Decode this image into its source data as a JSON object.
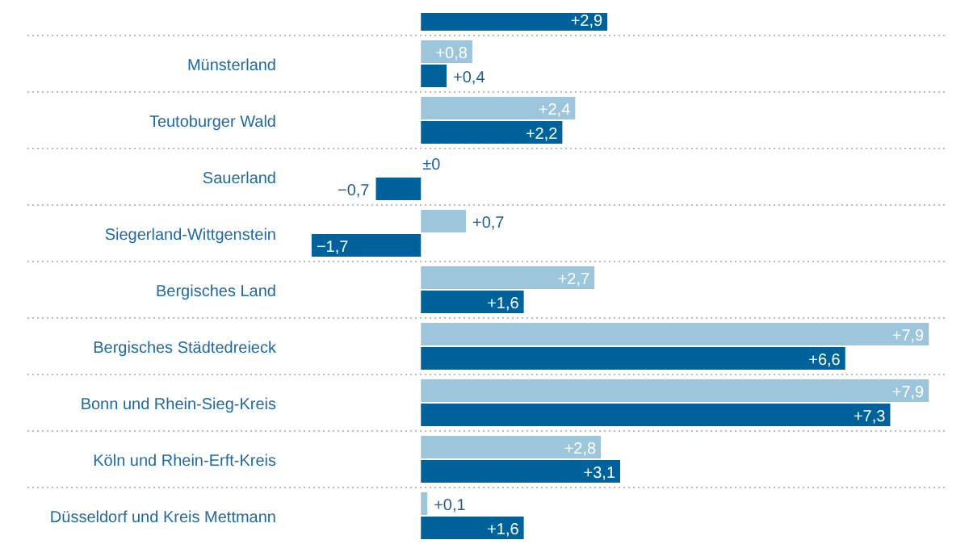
{
  "chart_data": {
    "type": "bar",
    "orientation": "horizontal",
    "categories": [
      null,
      "Münsterland",
      "Teutoburger Wald",
      "Sauerland",
      "Siegerland-Wittgenstein",
      "Bergisches Land",
      "Bergisches Städtedreieck",
      "Bonn und Rhein-Sieg-Kreis",
      "Köln und Rhein-Erft-Kreis",
      "Düsseldorf und Kreis Mettmann"
    ],
    "series": [
      {
        "color": "#9dc6dd",
        "values": [
          null,
          0.8,
          2.4,
          0,
          0.7,
          2.7,
          7.9,
          7.9,
          2.8,
          0.1
        ],
        "value_labels": [
          null,
          "+0,8",
          "+2,4",
          "±0",
          "+0,7",
          "+2,7",
          "+7,9",
          "+7,9",
          "+2,8",
          "+0,1"
        ]
      },
      {
        "color": "#00629b",
        "values": [
          2.9,
          0.4,
          2.2,
          -0.7,
          -1.7,
          1.6,
          6.6,
          7.3,
          3.1,
          1.6
        ],
        "value_labels": [
          "+2,9",
          "+0,4",
          "+2,2",
          "−0,7",
          "−1,7",
          "+1,6",
          "+6,6",
          "+7,3",
          "+3,1",
          "+1,6"
        ]
      }
    ],
    "tick_labels": "y",
    "legend": false
  }
}
